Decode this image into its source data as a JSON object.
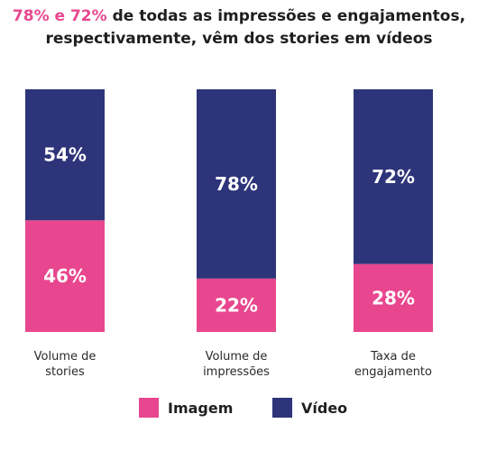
{
  "title": {
    "highlight": "78% e 72%",
    "line1_rest": " de todas as impressões e engajamentos,",
    "line2": "respectivamente, vêm dos stories em vídeos"
  },
  "colors": {
    "imagem": "#e8478f",
    "video": "#2e3479",
    "highlight": "#e8478f"
  },
  "chart_data": {
    "type": "bar",
    "stacked": true,
    "normalized": true,
    "categories": [
      [
        "Volume de",
        "stories"
      ],
      [
        "Volume de",
        "impressões"
      ],
      [
        "Taxa de",
        "engajamento"
      ]
    ],
    "series": [
      {
        "name": "Imagem",
        "values": [
          46,
          22,
          28
        ],
        "labels": [
          "46%",
          "22%",
          "28%"
        ]
      },
      {
        "name": "Vídeo",
        "values": [
          54,
          78,
          72
        ],
        "labels": [
          "54%",
          "78%",
          "72%"
        ]
      }
    ],
    "ylim": [
      0,
      100
    ],
    "grid": false,
    "legend_position": "bottom"
  },
  "legend": [
    {
      "label": "Imagem",
      "icon": "pink-square"
    },
    {
      "label": "Vídeo",
      "icon": "navy-square"
    }
  ]
}
